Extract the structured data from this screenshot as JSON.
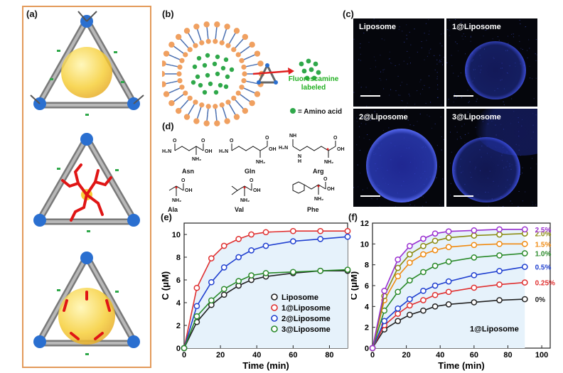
{
  "panel_labels": {
    "a": "(a)",
    "b": "(b)",
    "c": "(c)",
    "d": "(d)",
    "e": "(e)",
    "f": "(f)"
  },
  "panel_b": {
    "fluorescamine_label_line1": "Fluorescamine",
    "fluorescamine_label_line2": "labeled",
    "amino_acid_legend": "= Amino acid",
    "colors": {
      "lipid_head": "#f0a060",
      "lipid_tail": "#4a6fb0",
      "amino_acid": "#2fa84a",
      "arrow": "#e02020",
      "text_green": "#22b022"
    }
  },
  "panel_c": {
    "images": [
      {
        "label": "Liposome",
        "fluorescence": 0.0
      },
      {
        "label": "1@Liposome",
        "fluorescence": 0.55
      },
      {
        "label": "2@Liposome",
        "fluorescence": 0.9
      },
      {
        "label": "3@Liposome",
        "fluorescence": 0.6
      }
    ]
  },
  "panel_d": {
    "amino_acids": [
      {
        "name": "Asn",
        "structure_parts": [
          "O",
          "H₂N",
          "O",
          "OH",
          "NH₂"
        ]
      },
      {
        "name": "Gln",
        "structure_parts": [
          "O",
          "H₂N",
          "O",
          "OH",
          "NH₂"
        ]
      },
      {
        "name": "Arg",
        "structure_parts": [
          "NH",
          "H₂N",
          "N",
          "H",
          "O",
          "OH",
          "NH₂"
        ]
      },
      {
        "name": "Ala",
        "structure_parts": [
          "O",
          "OH",
          "NH₂"
        ]
      },
      {
        "name": "Val",
        "structure_parts": [
          "O",
          "OH",
          "NH₂"
        ]
      },
      {
        "name": "Phe",
        "structure_parts": [
          "O",
          "OH",
          "NH₂"
        ]
      }
    ]
  },
  "chart_data": [
    {
      "id": "e",
      "type": "line",
      "xlabel": "Time (min)",
      "ylabel": "C (μM)",
      "xlim": [
        0,
        90
      ],
      "ylim": [
        0,
        11
      ],
      "xticks": [
        0,
        20,
        40,
        60,
        80
      ],
      "yticks": [
        0,
        2,
        4,
        6,
        8,
        10
      ],
      "legend_position": "bottom-right",
      "series": [
        {
          "name": "Liposome",
          "color": "#222222",
          "x": [
            0,
            7,
            15,
            22,
            30,
            37,
            45,
            60,
            75,
            90
          ],
          "y": [
            0,
            2.3,
            3.8,
            4.7,
            5.5,
            6.0,
            6.3,
            6.6,
            6.8,
            6.8
          ]
        },
        {
          "name": "1@Liposome",
          "color": "#e03030",
          "x": [
            0,
            7,
            15,
            22,
            30,
            37,
            45,
            60,
            75,
            90
          ],
          "y": [
            0,
            5.3,
            7.9,
            9.0,
            9.6,
            10.0,
            10.2,
            10.3,
            10.3,
            10.3
          ]
        },
        {
          "name": "2@Liposome",
          "color": "#2040d0",
          "x": [
            0,
            7,
            15,
            22,
            30,
            37,
            45,
            60,
            75,
            90
          ],
          "y": [
            0,
            3.7,
            5.8,
            7.1,
            8.0,
            8.6,
            9.0,
            9.4,
            9.6,
            9.8
          ]
        },
        {
          "name": "3@Liposome",
          "color": "#2a8a2a",
          "x": [
            0,
            7,
            15,
            22,
            30,
            37,
            45,
            60,
            75,
            90
          ],
          "y": [
            0,
            2.8,
            4.2,
            5.2,
            5.9,
            6.4,
            6.6,
            6.7,
            6.8,
            6.9
          ]
        }
      ]
    },
    {
      "id": "f",
      "type": "line",
      "xlabel": "Time (min)",
      "ylabel": "C (μM)",
      "xlim": [
        0,
        105
      ],
      "ylim": [
        0,
        12
      ],
      "xticks": [
        0,
        20,
        40,
        60,
        80,
        100
      ],
      "yticks": [
        0,
        2,
        4,
        6,
        8,
        10,
        12
      ],
      "annotation": "1@Liposome",
      "series": [
        {
          "name": "0%",
          "color": "#222222",
          "x": [
            0,
            7,
            15,
            22,
            30,
            37,
            45,
            60,
            75,
            90
          ],
          "y": [
            0,
            1.8,
            2.6,
            3.2,
            3.6,
            4.0,
            4.2,
            4.4,
            4.6,
            4.7
          ]
        },
        {
          "name": "0.25%",
          "color": "#e03030",
          "x": [
            0,
            7,
            15,
            22,
            30,
            37,
            45,
            60,
            75,
            90
          ],
          "y": [
            0,
            2.2,
            3.3,
            4.1,
            4.6,
            5.1,
            5.4,
            5.8,
            6.1,
            6.3
          ]
        },
        {
          "name": "0.5%",
          "color": "#2040d0",
          "x": [
            0,
            7,
            15,
            22,
            30,
            37,
            45,
            60,
            75,
            90
          ],
          "y": [
            0,
            2.6,
            3.8,
            4.7,
            5.5,
            6.0,
            6.4,
            7.0,
            7.4,
            7.8
          ]
        },
        {
          "name": "1.0%",
          "color": "#2a8a2a",
          "x": [
            0,
            7,
            15,
            22,
            30,
            37,
            45,
            60,
            75,
            90
          ],
          "y": [
            0,
            3.6,
            5.4,
            6.5,
            7.3,
            7.9,
            8.3,
            8.7,
            8.9,
            9.1
          ]
        },
        {
          "name": "1.5%",
          "color": "#f08a10",
          "x": [
            0,
            7,
            15,
            22,
            30,
            37,
            45,
            60,
            75,
            90
          ],
          "y": [
            0,
            4.6,
            6.9,
            8.2,
            9.0,
            9.4,
            9.7,
            9.9,
            10.0,
            10.0
          ]
        },
        {
          "name": "2.0%",
          "color": "#8a8a10",
          "x": [
            0,
            7,
            15,
            22,
            30,
            37,
            45,
            60,
            75,
            90
          ],
          "y": [
            0,
            5.0,
            7.7,
            9.0,
            9.8,
            10.3,
            10.6,
            10.8,
            10.9,
            11.0
          ]
        },
        {
          "name": "2.5%",
          "color": "#9a30d0",
          "x": [
            0,
            7,
            15,
            22,
            30,
            37,
            45,
            60,
            75,
            90
          ],
          "y": [
            0,
            5.5,
            8.5,
            9.8,
            10.5,
            11.0,
            11.2,
            11.3,
            11.4,
            11.4
          ]
        }
      ]
    }
  ]
}
